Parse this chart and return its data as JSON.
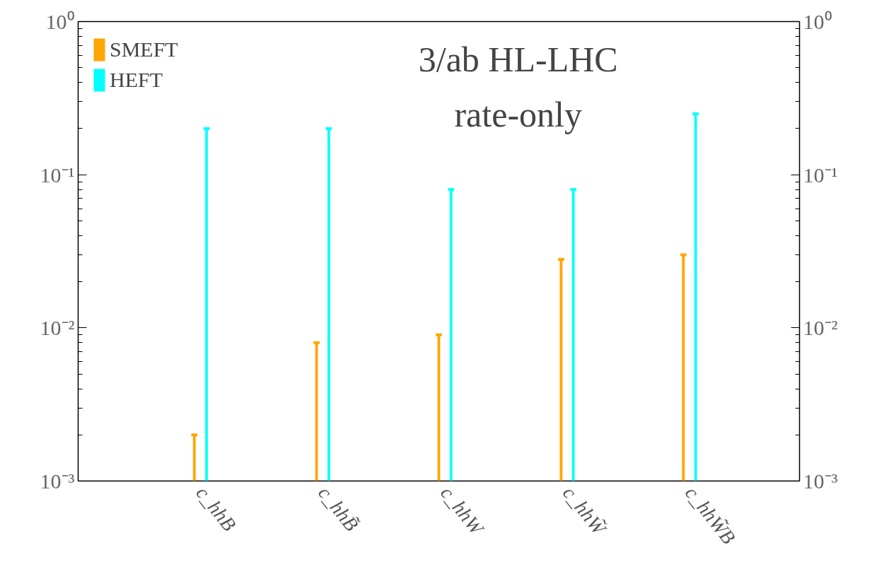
{
  "chart_data": {
    "type": "bar",
    "categories": [
      "c_hhB",
      "c_hhB̃",
      "c_hhW",
      "c_hhW̃",
      "c_hhW̃B"
    ],
    "series": [
      {
        "name": "SMEFT",
        "color": "#ffa500",
        "values": [
          0.002,
          0.008,
          0.009,
          0.028,
          0.03
        ]
      },
      {
        "name": "HEFT",
        "color": "#00ffff",
        "values": [
          0.2,
          0.2,
          0.08,
          0.08,
          0.25
        ]
      }
    ],
    "log": "y",
    "ylim": [
      0.001,
      1
    ],
    "yticks": [
      {
        "value": 0.001,
        "label": "10⁻³"
      },
      {
        "value": 0.01,
        "label": "10⁻²"
      },
      {
        "value": 0.1,
        "label": "10⁻¹"
      },
      {
        "value": 1,
        "label": "10⁰"
      }
    ],
    "annotations": [
      "3/ab HL-LHC\nrate-only"
    ],
    "legend": "top left",
    "grid": false
  }
}
